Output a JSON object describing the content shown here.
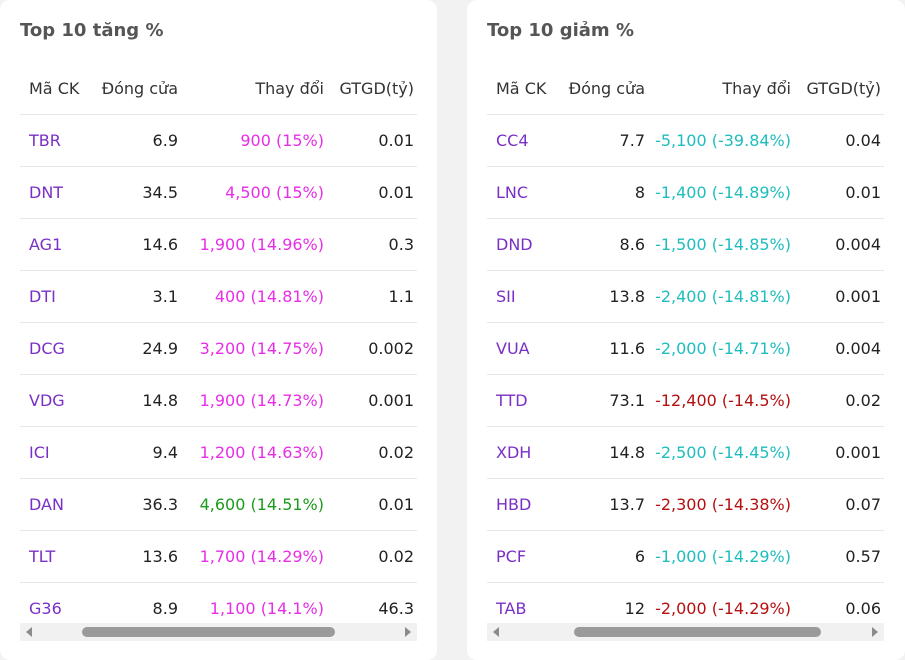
{
  "gainers": {
    "title": "Top 10 tăng %",
    "headers": {
      "symbol": "Mã CK",
      "close": "Đóng cửa",
      "change": "Thay đổi",
      "value": "GTGD(tỷ)"
    },
    "rows": [
      {
        "symbol": "TBR",
        "close": "6.9",
        "change": "900 (15%)",
        "value": "0.01",
        "color": "#e82ee8"
      },
      {
        "symbol": "DNT",
        "close": "34.5",
        "change": "4,500 (15%)",
        "value": "0.01",
        "color": "#e82ee8"
      },
      {
        "symbol": "AG1",
        "close": "14.6",
        "change": "1,900 (14.96%)",
        "value": "0.3",
        "color": "#e82ee8"
      },
      {
        "symbol": "DTI",
        "close": "3.1",
        "change": "400 (14.81%)",
        "value": "1.1",
        "color": "#e82ee8"
      },
      {
        "symbol": "DCG",
        "close": "24.9",
        "change": "3,200 (14.75%)",
        "value": "0.002",
        "color": "#e82ee8"
      },
      {
        "symbol": "VDG",
        "close": "14.8",
        "change": "1,900 (14.73%)",
        "value": "0.001",
        "color": "#e82ee8"
      },
      {
        "symbol": "ICI",
        "close": "9.4",
        "change": "1,200 (14.63%)",
        "value": "0.02",
        "color": "#e82ee8"
      },
      {
        "symbol": "DAN",
        "close": "36.3",
        "change": "4,600 (14.51%)",
        "value": "0.01",
        "color": "#1c9b1c"
      },
      {
        "symbol": "TLT",
        "close": "13.6",
        "change": "1,700 (14.29%)",
        "value": "0.02",
        "color": "#e82ee8"
      },
      {
        "symbol": "G36",
        "close": "8.9",
        "change": "1,100 (14.1%)",
        "value": "46.3",
        "color": "#e82ee8"
      }
    ]
  },
  "losers": {
    "title": "Top 10 giảm %",
    "headers": {
      "symbol": "Mã CK",
      "close": "Đóng cửa",
      "change": "Thay đổi",
      "value": "GTGD(tỷ)"
    },
    "rows": [
      {
        "symbol": "CC4",
        "close": "7.7",
        "change": "-5,100 (-39.84%)",
        "value": "0.04",
        "color": "#1fbdbd"
      },
      {
        "symbol": "LNC",
        "close": "8",
        "change": "-1,400 (-14.89%)",
        "value": "0.01",
        "color": "#1fbdbd"
      },
      {
        "symbol": "DND",
        "close": "8.6",
        "change": "-1,500 (-14.85%)",
        "value": "0.004",
        "color": "#1fbdbd"
      },
      {
        "symbol": "SII",
        "close": "13.8",
        "change": "-2,400 (-14.81%)",
        "value": "0.001",
        "color": "#1fbdbd"
      },
      {
        "symbol": "VUA",
        "close": "11.6",
        "change": "-2,000 (-14.71%)",
        "value": "0.004",
        "color": "#1fbdbd"
      },
      {
        "symbol": "TTD",
        "close": "73.1",
        "change": "-12,400 (-14.5%)",
        "value": "0.02",
        "color": "#b50f0f"
      },
      {
        "symbol": "XDH",
        "close": "14.8",
        "change": "-2,500 (-14.45%)",
        "value": "0.001",
        "color": "#1fbdbd"
      },
      {
        "symbol": "HBD",
        "close": "13.7",
        "change": "-2,300 (-14.38%)",
        "value": "0.07",
        "color": "#b50f0f"
      },
      {
        "symbol": "PCF",
        "close": "6",
        "change": "-1,000 (-14.29%)",
        "value": "0.57",
        "color": "#1fbdbd"
      },
      {
        "symbol": "TAB",
        "close": "12",
        "change": "-2,000 (-14.29%)",
        "value": "0.06",
        "color": "#b50f0f"
      }
    ]
  },
  "colors": {
    "symbol": "#7a2fc6",
    "up": "#e82ee8",
    "up_alt": "#1c9b1c",
    "down_cyan": "#1fbdbd",
    "down_red": "#b50f0f"
  },
  "icons": [
    "scroll-left-arrow-icon",
    "scroll-right-arrow-icon"
  ]
}
